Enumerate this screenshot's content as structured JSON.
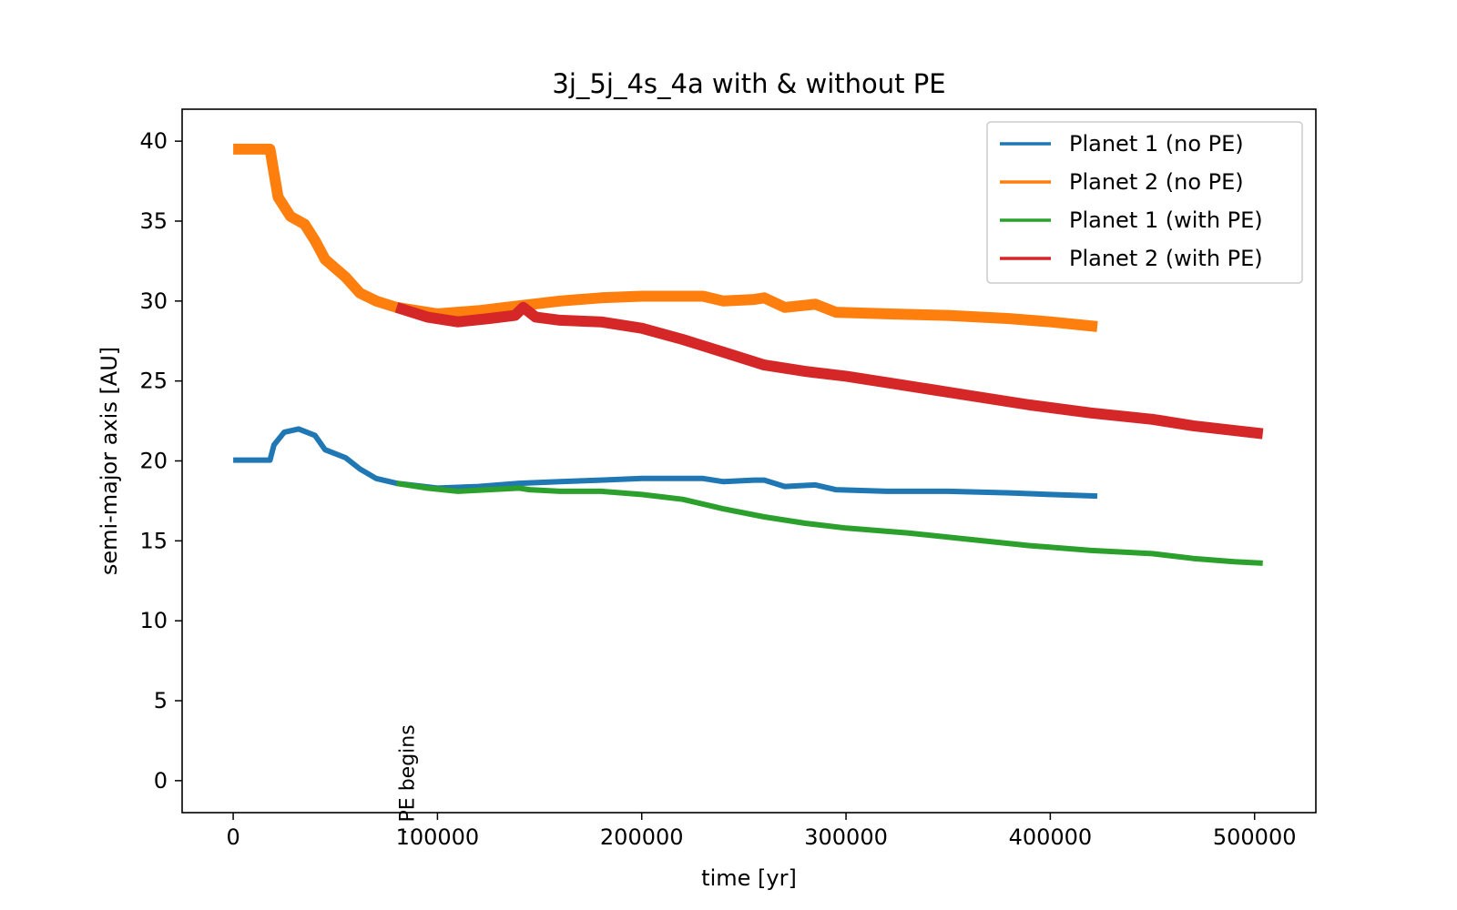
{
  "chart_data": {
    "type": "line",
    "title": "3j_5j_4s_4a with & without PE",
    "xlabel": "time [yr]",
    "ylabel": "semi-major axis [AU]",
    "xlim": [
      -25000,
      530000
    ],
    "ylim": [
      -2,
      42
    ],
    "xticks": [
      0,
      100000,
      200000,
      300000,
      400000,
      500000
    ],
    "yticks": [
      0,
      5,
      10,
      15,
      20,
      25,
      30,
      35,
      40
    ],
    "grid": false,
    "legend_position": "top-right",
    "annotation": {
      "text": ": PE begins",
      "x": 80000,
      "y": 0
    },
    "series": [
      {
        "name": "Planet 1 (no PE)",
        "color": "#1f77b4",
        "points": [
          [
            0,
            20.05
          ],
          [
            18000,
            20.05
          ],
          [
            20000,
            21.0
          ],
          [
            25000,
            21.8
          ],
          [
            32000,
            22.0
          ],
          [
            40000,
            21.6
          ],
          [
            45000,
            20.7
          ],
          [
            55000,
            20.2
          ],
          [
            62000,
            19.5
          ],
          [
            70000,
            18.9
          ],
          [
            80000,
            18.6
          ],
          [
            100000,
            18.3
          ],
          [
            120000,
            18.4
          ],
          [
            140000,
            18.6
          ],
          [
            160000,
            18.7
          ],
          [
            180000,
            18.8
          ],
          [
            200000,
            18.9
          ],
          [
            230000,
            18.9
          ],
          [
            240000,
            18.7
          ],
          [
            255000,
            18.8
          ],
          [
            260000,
            18.8
          ],
          [
            270000,
            18.4
          ],
          [
            285000,
            18.5
          ],
          [
            295000,
            18.2
          ],
          [
            320000,
            18.1
          ],
          [
            350000,
            18.1
          ],
          [
            380000,
            18.0
          ],
          [
            400000,
            17.9
          ],
          [
            423000,
            17.8
          ]
        ]
      },
      {
        "name": "Planet 2 (no PE)",
        "color": "#ff7f0e",
        "points": [
          [
            0,
            39.5
          ],
          [
            18000,
            39.5
          ],
          [
            20000,
            38.0
          ],
          [
            22000,
            36.5
          ],
          [
            28000,
            35.3
          ],
          [
            35000,
            34.8
          ],
          [
            40000,
            33.8
          ],
          [
            45000,
            32.6
          ],
          [
            55000,
            31.5
          ],
          [
            62000,
            30.5
          ],
          [
            70000,
            30.0
          ],
          [
            80000,
            29.6
          ],
          [
            100000,
            29.2
          ],
          [
            120000,
            29.4
          ],
          [
            140000,
            29.7
          ],
          [
            160000,
            30.0
          ],
          [
            180000,
            30.2
          ],
          [
            200000,
            30.3
          ],
          [
            230000,
            30.3
          ],
          [
            240000,
            30.0
          ],
          [
            255000,
            30.1
          ],
          [
            260000,
            30.2
          ],
          [
            270000,
            29.6
          ],
          [
            285000,
            29.8
          ],
          [
            295000,
            29.3
          ],
          [
            320000,
            29.2
          ],
          [
            350000,
            29.1
          ],
          [
            380000,
            28.9
          ],
          [
            400000,
            28.7
          ],
          [
            423000,
            28.4
          ]
        ]
      },
      {
        "name": "Planet 1 (with PE)",
        "color": "#2ca02c",
        "points": [
          [
            80000,
            18.6
          ],
          [
            95000,
            18.3
          ],
          [
            110000,
            18.1
          ],
          [
            125000,
            18.2
          ],
          [
            140000,
            18.3
          ],
          [
            145000,
            18.2
          ],
          [
            160000,
            18.1
          ],
          [
            180000,
            18.1
          ],
          [
            200000,
            17.9
          ],
          [
            220000,
            17.6
          ],
          [
            240000,
            17.0
          ],
          [
            260000,
            16.5
          ],
          [
            280000,
            16.1
          ],
          [
            300000,
            15.8
          ],
          [
            330000,
            15.5
          ],
          [
            360000,
            15.1
          ],
          [
            390000,
            14.7
          ],
          [
            420000,
            14.4
          ],
          [
            450000,
            14.2
          ],
          [
            470000,
            13.9
          ],
          [
            490000,
            13.7
          ],
          [
            504000,
            13.6
          ]
        ]
      },
      {
        "name": "Planet 2 (with PE)",
        "color": "#d62728",
        "points": [
          [
            80000,
            29.6
          ],
          [
            95000,
            29.0
          ],
          [
            110000,
            28.7
          ],
          [
            125000,
            28.9
          ],
          [
            138000,
            29.1
          ],
          [
            142000,
            29.6
          ],
          [
            148000,
            29.0
          ],
          [
            160000,
            28.8
          ],
          [
            180000,
            28.7
          ],
          [
            200000,
            28.3
          ],
          [
            220000,
            27.6
          ],
          [
            240000,
            26.8
          ],
          [
            260000,
            26.0
          ],
          [
            280000,
            25.6
          ],
          [
            300000,
            25.3
          ],
          [
            330000,
            24.7
          ],
          [
            360000,
            24.1
          ],
          [
            390000,
            23.5
          ],
          [
            420000,
            23.0
          ],
          [
            450000,
            22.6
          ],
          [
            470000,
            22.2
          ],
          [
            490000,
            21.9
          ],
          [
            504000,
            21.7
          ]
        ]
      }
    ]
  }
}
